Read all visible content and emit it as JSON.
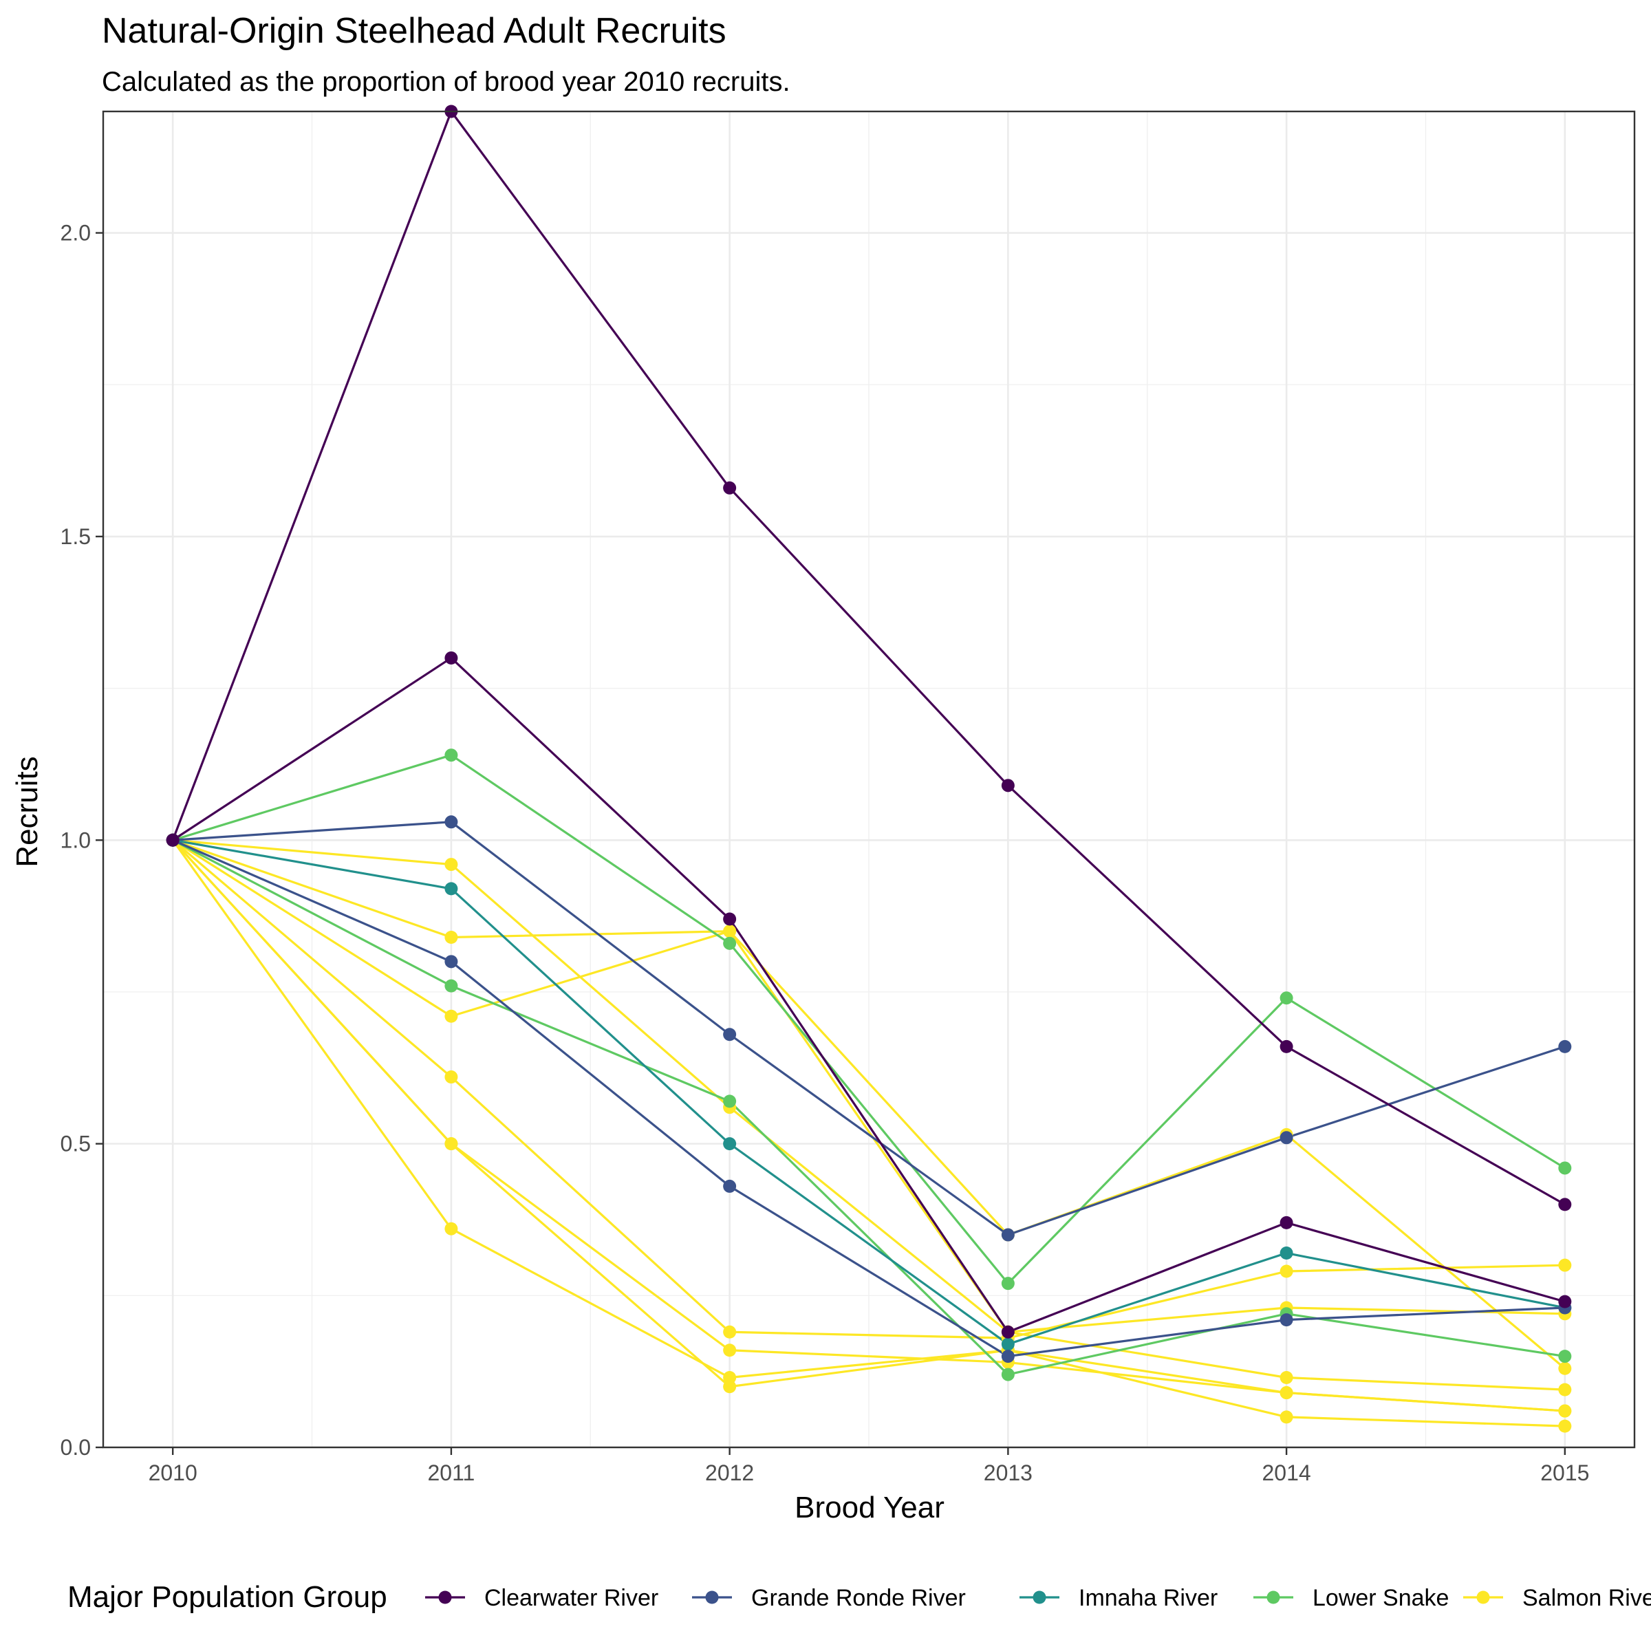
{
  "chart_data": {
    "type": "line",
    "title": "Natural-Origin Steelhead Adult Recruits",
    "subtitle": "Calculated as the proportion of brood year 2010 recruits.",
    "xlabel": "Brood Year",
    "ylabel": "Recruits",
    "x": [
      2010,
      2011,
      2012,
      2013,
      2014,
      2015
    ],
    "x_ticks": [
      "2010",
      "2011",
      "2012",
      "2013",
      "2014",
      "2015"
    ],
    "y_ticks": [
      "0.0",
      "0.5",
      "1.0",
      "1.5",
      "2.0"
    ],
    "y_tick_values": [
      0,
      0.5,
      1.0,
      1.5,
      2.0
    ],
    "xlim": [
      2009.75,
      2015.25
    ],
    "ylim": [
      0,
      2.2
    ],
    "grid": true,
    "legend_position": "bottom",
    "legend_title": "Major Population Group",
    "groups": [
      {
        "label": "Clearwater River",
        "color": "#440154"
      },
      {
        "label": "Grande Ronde River",
        "color": "#3b528b"
      },
      {
        "label": "Imnaha River",
        "color": "#21908c"
      },
      {
        "label": "Lower Snake",
        "color": "#5ec962"
      },
      {
        "label": "Salmon River",
        "color": "#fde725"
      }
    ],
    "series": [
      {
        "group": 0,
        "values": [
          1.0,
          2.2,
          1.58,
          1.09,
          0.66,
          0.4
        ]
      },
      {
        "group": 0,
        "values": [
          1.0,
          1.3,
          0.87,
          0.19,
          0.37,
          0.24
        ]
      },
      {
        "group": 1,
        "values": [
          1.0,
          1.03,
          0.68,
          0.35,
          0.51,
          0.66
        ]
      },
      {
        "group": 1,
        "values": [
          1.0,
          0.8,
          0.43,
          0.15,
          0.21,
          0.23
        ]
      },
      {
        "group": 2,
        "values": [
          1.0,
          0.92,
          0.5,
          0.17,
          0.32,
          0.23
        ]
      },
      {
        "group": 3,
        "values": [
          1.0,
          1.14,
          0.83,
          0.27,
          0.74,
          0.46
        ]
      },
      {
        "group": 3,
        "values": [
          1.0,
          0.76,
          0.57,
          0.12,
          0.22,
          0.15
        ]
      },
      {
        "group": 4,
        "values": [
          1.0,
          0.96,
          0.56,
          0.19,
          0.115,
          0.095
        ]
      },
      {
        "group": 4,
        "values": [
          1.0,
          0.84,
          0.85,
          0.19,
          0.23,
          0.22
        ]
      },
      {
        "group": 4,
        "values": [
          1.0,
          0.71,
          0.85,
          0.35,
          0.515,
          0.13
        ]
      },
      {
        "group": 4,
        "values": [
          1.0,
          0.61,
          0.19,
          0.18,
          0.29,
          0.3
        ]
      },
      {
        "group": 4,
        "values": [
          1.0,
          0.5,
          0.16,
          0.14,
          0.09,
          0.06
        ]
      },
      {
        "group": 4,
        "values": [
          1.0,
          0.36,
          0.115,
          0.16,
          0.05,
          0.035
        ]
      },
      {
        "group": 4,
        "values": [
          1.0,
          0.5,
          0.1,
          0.16,
          0.09,
          0.06
        ]
      }
    ]
  }
}
